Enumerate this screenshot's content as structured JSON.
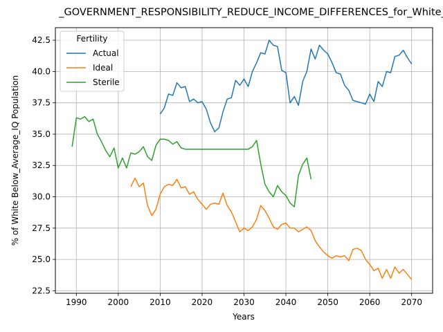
{
  "chart_data": {
    "type": "line",
    "title": "_GOVERNMENT_RESPONSIBILITY_REDUCE_INCOME_DIFFERENCES_for_White_B",
    "xlabel": "Years",
    "ylabel": "% of White Below_Average_IQ Population",
    "xlim": [
      1985,
      2075
    ],
    "ylim": [
      22.3,
      43.5
    ],
    "xticks": [
      1990,
      2000,
      2010,
      2020,
      2030,
      2040,
      2050,
      2060,
      2070
    ],
    "yticks": [
      22.5,
      25.0,
      27.5,
      30.0,
      32.5,
      35.0,
      37.5,
      40.0,
      42.5
    ],
    "ytick_labels": [
      "22.5",
      "25.0",
      "27.5",
      "30.0",
      "32.5",
      "35.0",
      "37.5",
      "40.0",
      "42.5"
    ],
    "grid": true,
    "legend": {
      "title": "Fertility",
      "position": "top-left"
    },
    "series": [
      {
        "name": "Actual",
        "color": "#1f77b4",
        "x": [
          2010,
          2011,
          2012,
          2013,
          2014,
          2015,
          2016,
          2017,
          2018,
          2019,
          2020,
          2021,
          2022,
          2023,
          2024,
          2025,
          2026,
          2027,
          2028,
          2029,
          2030,
          2031,
          2032,
          2033,
          2034,
          2035,
          2036,
          2037,
          2038,
          2039,
          2040,
          2041,
          2042,
          2043,
          2044,
          2045,
          2046,
          2047,
          2048,
          2049,
          2050,
          2051,
          2052,
          2053,
          2054,
          2055,
          2056,
          2057,
          2058,
          2059,
          2060,
          2061,
          2062,
          2063,
          2064,
          2065,
          2066,
          2067,
          2068,
          2069,
          2070
        ],
        "y": [
          36.6,
          37.1,
          38.2,
          38.1,
          39.1,
          38.7,
          38.8,
          37.6,
          37.8,
          37.5,
          37.6,
          37.0,
          35.9,
          35.2,
          35.5,
          36.8,
          37.8,
          37.9,
          39.3,
          38.9,
          39.4,
          38.8,
          40.0,
          40.7,
          41.5,
          41.4,
          42.5,
          42.1,
          42.0,
          40.1,
          39.9,
          37.5,
          38.0,
          37.3,
          39.2,
          40.0,
          41.8,
          41.0,
          42.1,
          41.7,
          41.4,
          40.7,
          39.9,
          39.8,
          38.9,
          38.5,
          37.7,
          37.6,
          37.5,
          37.4,
          38.2,
          37.6,
          39.2,
          38.8,
          40.0,
          39.9,
          41.2,
          41.3,
          41.7,
          41.1,
          40.6
        ]
      },
      {
        "name": "Ideal",
        "color": "#ff7f0e",
        "x": [
          2003,
          2004,
          2005,
          2006,
          2007,
          2008,
          2009,
          2010,
          2011,
          2012,
          2013,
          2014,
          2015,
          2016,
          2017,
          2018,
          2019,
          2020,
          2021,
          2022,
          2023,
          2024,
          2025,
          2026,
          2027,
          2028,
          2029,
          2030,
          2031,
          2032,
          2033,
          2034,
          2035,
          2036,
          2037,
          2038,
          2039,
          2040,
          2041,
          2042,
          2043,
          2044,
          2045,
          2046,
          2047,
          2048,
          2049,
          2050,
          2051,
          2052,
          2053,
          2054,
          2055,
          2056,
          2057,
          2058,
          2059,
          2060,
          2061,
          2062,
          2063,
          2064,
          2065,
          2066,
          2067,
          2068,
          2069,
          2070
        ],
        "y": [
          30.8,
          31.5,
          30.8,
          31.1,
          29.3,
          28.5,
          29.0,
          30.2,
          30.8,
          31.0,
          30.9,
          31.4,
          30.7,
          30.8,
          30.2,
          30.4,
          29.8,
          29.4,
          29.0,
          29.4,
          29.5,
          29.4,
          30.3,
          29.3,
          28.8,
          28.0,
          27.2,
          27.5,
          27.3,
          27.6,
          28.2,
          29.3,
          28.9,
          28.3,
          27.6,
          27.4,
          27.8,
          27.9,
          27.5,
          27.5,
          27.2,
          27.4,
          27.6,
          27.3,
          26.5,
          26.0,
          25.6,
          25.3,
          25.1,
          25.3,
          25.2,
          25.3,
          24.9,
          25.8,
          25.9,
          25.7,
          25.0,
          24.6,
          24.1,
          24.3,
          23.5,
          24.2,
          23.5,
          24.4,
          23.9,
          24.2,
          23.8,
          23.4
        ]
      },
      {
        "name": "Sterile",
        "color": "#2ca02c",
        "x": [
          1989,
          1990,
          1991,
          1992,
          1993,
          1994,
          1995,
          1996,
          1997,
          1998,
          1999,
          2000,
          2001,
          2002,
          2003,
          2004,
          2005,
          2006,
          2007,
          2008,
          2009,
          2010,
          2011,
          2012,
          2013,
          2014,
          2015,
          2016,
          2017,
          2018,
          2019,
          2020,
          2021,
          2022,
          2023,
          2024,
          2025,
          2026,
          2027,
          2028,
          2029,
          2030,
          2031,
          2032,
          2033,
          2034,
          2035,
          2036,
          2037,
          2038,
          2039,
          2040,
          2041,
          2042,
          2043,
          2044,
          2045,
          2046
        ],
        "y": [
          34.0,
          36.3,
          36.2,
          36.4,
          36.0,
          36.2,
          35.0,
          34.4,
          33.7,
          33.2,
          33.9,
          32.3,
          33.1,
          32.3,
          33.5,
          33.4,
          33.6,
          34.0,
          33.2,
          32.9,
          34.1,
          34.6,
          34.6,
          34.5,
          34.2,
          34.4,
          33.9,
          33.8,
          33.8,
          33.8,
          33.8,
          33.8,
          33.8,
          33.8,
          33.8,
          33.8,
          33.8,
          33.8,
          33.8,
          33.8,
          33.8,
          33.8,
          33.8,
          34.0,
          34.5,
          32.6,
          31.0,
          30.4,
          30.0,
          30.9,
          30.4,
          30.1,
          29.5,
          29.2,
          31.7,
          32.6,
          33.1,
          31.4
        ]
      }
    ]
  }
}
